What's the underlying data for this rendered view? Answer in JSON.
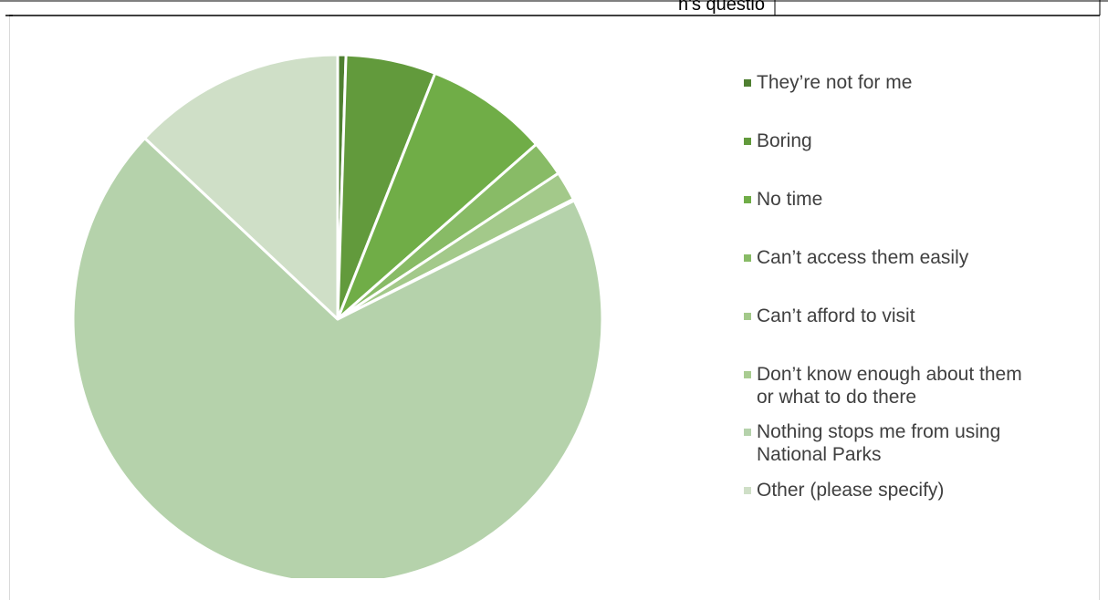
{
  "chart_data": {
    "type": "pie",
    "title": "",
    "start_angle_deg": 0,
    "direction": "clockwise",
    "legend_position": "right",
    "slices": [
      {
        "label": "They’re not for me",
        "value": 0.5,
        "color": "#4f7f31"
      },
      {
        "label": "Boring",
        "value": 5.5,
        "color": "#629a3c"
      },
      {
        "label": "No time",
        "value": 7.5,
        "color": "#70ad47"
      },
      {
        "label": "Can’t access them easily",
        "value": 2.2,
        "color": "#88bb66"
      },
      {
        "label": "Can’t afford to visit",
        "value": 1.8,
        "color": "#a3c98a"
      },
      {
        "label": "Don’t know enough about them\nor what to do there",
        "value": 0.1,
        "color": "#a9cc91"
      },
      {
        "label": "Nothing stops me from using\nNational Parks",
        "value": 69.4,
        "color": "#b5d2ab"
      },
      {
        "label": "Other (please specify)",
        "value": 13.0,
        "color": "#cfdfc7"
      }
    ]
  },
  "header_fragment": {
    "text": "n's questio"
  }
}
